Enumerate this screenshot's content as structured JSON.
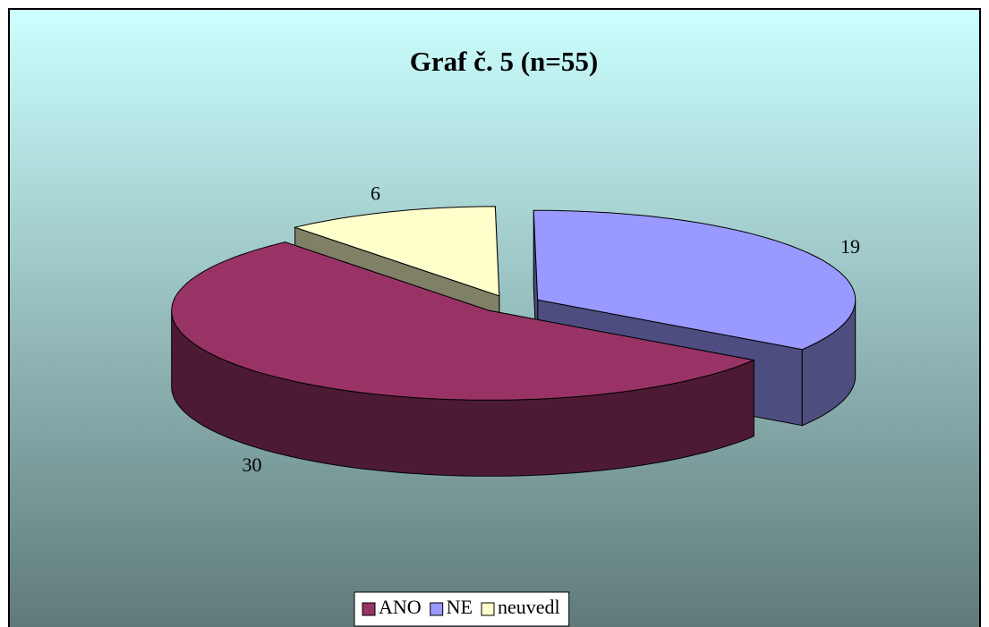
{
  "chart_data": {
    "type": "pie",
    "title": "Graf č. 5 (n=55)",
    "categories": [
      "ANO",
      "NE",
      "neuvedl"
    ],
    "values": [
      30,
      19,
      6
    ],
    "colors": [
      "#993366",
      "#9999ff",
      "#ffffcc"
    ],
    "legend": "bottom"
  }
}
